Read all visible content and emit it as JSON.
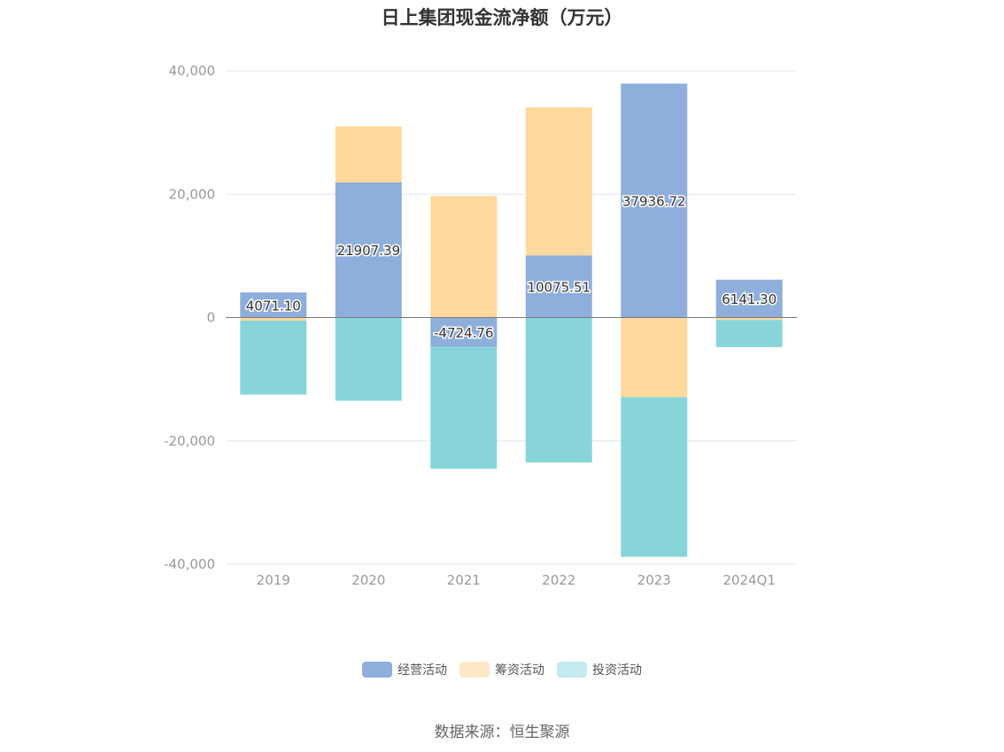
{
  "title": "日上集团现金流净额（万元）",
  "source": {
    "label": "数据来源：",
    "name": "恒生聚源"
  },
  "colors": {
    "operating": "#8eaedb",
    "financing": "#fed99b",
    "investing": "#87d5d9",
    "grid": "#e3e6ef",
    "axis_text": "#999999",
    "zero_line": "#7a7a7a",
    "legend_financing": "#fde8c8",
    "legend_investing": "#c4ebed"
  },
  "chart_data": {
    "type": "bar",
    "stacked": true,
    "title": "日上集团现金流净额（万元）",
    "categories": [
      "2019",
      "2020",
      "2021",
      "2022",
      "2023",
      "2024Q1"
    ],
    "ylim": [
      -40000,
      40000
    ],
    "yticks": [
      40000,
      20000,
      0,
      -20000,
      -40000
    ],
    "ytick_labels": [
      "40,000",
      "20,000",
      "0",
      "-20,000",
      "-40,000"
    ],
    "grid": true,
    "legend_position": "bottom",
    "series": [
      {
        "name": "经营活动",
        "key": "operating",
        "values": [
          4071.1,
          21907.39,
          -4724.76,
          10075.51,
          37936.72,
          6141.3
        ],
        "labels": [
          "4071.10",
          "21907.39",
          "-4724.76",
          "10075.51",
          "37936.72",
          "6141.30"
        ]
      },
      {
        "name": "筹资活动",
        "key": "financing",
        "values": [
          -500,
          9100,
          19700,
          24000,
          -12900,
          -400
        ]
      },
      {
        "name": "投资活动",
        "key": "investing",
        "values": [
          -12000,
          -13500,
          -19800,
          -23500,
          -25900,
          -4400
        ]
      }
    ]
  }
}
